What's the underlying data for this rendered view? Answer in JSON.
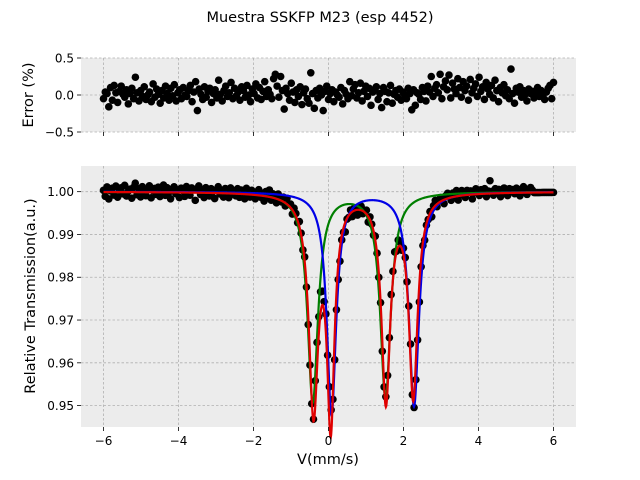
{
  "title": "Muestra SSKFP M23 (esp 4452)",
  "chart_data": [
    {
      "type": "scatter",
      "panel": "residuals",
      "xlabel": "",
      "ylabel": "Error (%)",
      "xlim": [
        -6.6,
        6.6
      ],
      "ylim": [
        -0.5,
        0.5
      ],
      "x_ticks": [
        -6,
        -4,
        -2,
        0,
        2,
        4,
        6
      ],
      "y_ticks": [
        -0.5,
        0.0,
        0.5
      ],
      "y_tick_labels": [
        "−0.5",
        "0.0",
        "0.5"
      ],
      "x_tick_labels_shown": false,
      "grid": true,
      "background": "#ececec",
      "marker_color": "#000000",
      "x_range": [
        -6.0,
        6.0
      ],
      "n_points": 256,
      "y": [
        -0.05,
        0.04,
        0.02,
        -0.16,
        0.1,
        -0.07,
        0.13,
        0.03,
        -0.1,
        0.05,
        0.12,
        0.01,
        -0.03,
        0.07,
        -0.12,
        0.02,
        0.09,
        -0.05,
        0.24,
        0.03,
        -0.08,
        0.06,
        -0.02,
        0.11,
        -0.06,
        0.0,
        0.04,
        -0.09,
        0.15,
        -0.03,
        0.08,
        0.01,
        -0.11,
        0.06,
        -0.04,
        0.12,
        0.02,
        -0.07,
        0.09,
        -0.01,
        0.14,
        -0.08,
        0.03,
        0.07,
        -0.05,
        0.1,
        0.0,
        -0.02,
        0.06,
        0.13,
        -0.09,
        0.04,
        0.18,
        -0.21,
        0.08,
        0.01,
        -0.06,
        0.11,
        -0.03,
        0.05,
        0.09,
        -0.1,
        0.02,
        0.07,
        -0.04,
        0.2,
        0.01,
        -0.08,
        0.06,
        0.12,
        -0.02,
        0.03,
        0.17,
        -0.05,
        0.09,
        -0.01,
        0.04,
        -0.07,
        0.11,
        0.06,
        -0.03,
        0.13,
        0.0,
        -0.09,
        0.08,
        0.02,
        0.15,
        -0.04,
        0.1,
        -0.06,
        0.05,
        0.18,
        -0.02,
        0.07,
        0.01,
        -0.05,
        0.22,
        0.28,
        0.12,
        -0.03,
        0.25,
        0.06,
        -0.19,
        0.09,
        0.02,
        -0.07,
        0.16,
        0.04,
        -0.1,
        0.07,
        -0.02,
        0.11,
        -0.13,
        0.03,
        0.08,
        -0.05,
        -0.11,
        0.3,
        0.02,
        -0.18,
        0.06,
        -0.04,
        0.09,
        0.0,
        -0.21,
        0.05,
        0.12,
        -0.06,
        0.02,
        0.07,
        -0.09,
        0.04,
        0.0,
        -0.03,
        0.1,
        -0.12,
        0.06,
        0.01,
        -0.05,
        0.18,
        -0.01,
        0.08,
        0.14,
        -0.04,
        0.03,
        0.16,
        -0.08,
        0.05,
        0.12,
        -0.02,
        0.09,
        -0.14,
        0.04,
        0.07,
        0.11,
        -0.06,
        0.02,
        -0.17,
        0.1,
        0.05,
        -0.09,
        0.03,
        0.13,
        -0.11,
        0.01,
        0.06,
        -0.03,
        0.08,
        -0.07,
        0.04,
        0.0,
        -0.05,
        0.09,
        0.02,
        -0.2,
        0.07,
        -0.14,
        0.03,
        0.01,
        -0.06,
        0.1,
        0.05,
        -0.08,
        0.12,
        0.04,
        0.25,
        -0.02,
        0.09,
        0.14,
        0.03,
        0.28,
        -0.05,
        0.11,
        0.19,
        0.07,
        0.27,
        -0.04,
        0.16,
        0.08,
        0.02,
        0.22,
        0.1,
        -0.03,
        0.18,
        0.06,
        0.12,
        -0.07,
        0.21,
        0.03,
        0.09,
        0.15,
        -0.02,
        0.24,
        0.05,
        0.11,
        -0.06,
        0.17,
        0.08,
        0.01,
        0.13,
        -0.04,
        0.2,
        0.06,
        -0.09,
        0.1,
        0.03,
        0.14,
        -0.01,
        0.07,
        -0.05,
        0.35,
        0.02,
        -0.11,
        0.09,
        0.04,
        0.11,
        -0.03,
        0.06,
        0.01,
        -0.08,
        0.08,
        0.02,
        0.05,
        -0.04,
        0.03,
        0.1,
        -0.02,
        0.06,
        0.0,
        -0.06,
        0.04,
        0.09,
        0.13,
        -0.05,
        0.17
      ]
    },
    {
      "type": "scatter",
      "panel": "spectrum",
      "xlabel": "V(mm/s)",
      "ylabel": "Relative Transmission(a.u.)",
      "xlim": [
        -6.6,
        6.6
      ],
      "ylim": [
        0.945,
        1.006
      ],
      "x_ticks": [
        -6,
        -4,
        -2,
        0,
        2,
        4,
        6
      ],
      "x_tick_labels": [
        "−6",
        "−4",
        "−2",
        "0",
        "2",
        "4",
        "6"
      ],
      "y_ticks": [
        0.95,
        0.96,
        0.97,
        0.98,
        0.99,
        1.0
      ],
      "y_tick_labels": [
        "0.95",
        "0.96",
        "0.97",
        "0.98",
        "0.99",
        "1.00"
      ],
      "grid": true,
      "background": "#ececec",
      "x_range": [
        -6.0,
        6.0
      ],
      "n_points": 256,
      "baseline": 1.0,
      "noise": [
        0.0004,
        -0.001,
        0.0012,
        -0.0016,
        0.0003,
        0.0009,
        -0.0007,
        0.0014,
        -0.0012,
        0.0005,
        0.001,
        -0.0004,
        0.0016,
        -0.0009,
        0.0002,
        0.0007,
        -0.0014,
        0.0011,
        0.0021,
        -0.0006,
        0.0008,
        -0.0011,
        0.0013,
        0.0001,
        -0.0008,
        0.0006,
        0.0015,
        -0.0013,
        0.0004,
        0.0009,
        -0.0005,
        0.0012,
        -0.001,
        0.0003,
        0.0017,
        -0.0007,
        0.0011,
        0.0,
        -0.0015,
        0.0008,
        0.0013,
        -0.0003,
        0.0006,
        -0.0012,
        0.001,
        0.0004,
        -0.0009,
        0.0014,
        0.0002,
        -0.0006,
        0.0011,
        0.0007,
        -0.0018,
        0.0009,
        0.0016,
        -0.0004,
        0.0005,
        -0.0011,
        0.0012,
        0.0001,
        -0.0007,
        0.001,
        0.0003,
        -0.0013,
        0.0008,
        0.0015,
        -0.0002,
        0.0006,
        -0.0009,
        0.0011,
        0.0004,
        -0.001,
        0.0013,
        0.0,
        0.0007,
        -0.0005,
        0.0012,
        -0.0008,
        0.0009,
        0.0002,
        -0.0011,
        0.0014,
        0.0005,
        -0.0006,
        0.001,
        0.0003,
        -0.0009,
        0.0008,
        0.0013,
        -0.0004,
        0.0006,
        -0.0012,
        0.0011,
        0.0001,
        0.0016,
        -0.0007,
        0.0009,
        0.0004,
        -0.001,
        0.0012,
        0.0006,
        -0.0003,
        0.001,
        -0.0008,
        0.0013,
        0.0002,
        0.0007,
        -0.0011,
        0.0009,
        0.0005,
        -0.0006,
        0.0011,
        0.0003,
        -0.0009,
        0.0014,
        0.0001,
        -0.0004,
        0.0008,
        0.0012,
        -0.001,
        0.0006,
        0.0002,
        -0.0007,
        0.0013,
        0.0004,
        -0.0005,
        0.001,
        -0.0012,
        0.0007,
        0.0011,
        0.0,
        -0.0008,
        0.0009,
        0.0005,
        -0.0003,
        0.0012,
        0.0006,
        -0.001,
        0.0008,
        0.0003,
        0.0014,
        -0.0006,
        0.001,
        0.0001,
        -0.0009,
        0.0007,
        0.0012,
        -0.0004,
        0.0005,
        0.0011,
        -0.0011,
        0.0009,
        0.0003,
        -0.0007,
        0.0013,
        0.0006,
        -0.0002,
        0.001,
        -0.0008,
        0.0004,
        0.0012,
        0.0,
        -0.001,
        0.0008,
        0.0005,
        0.0014,
        -0.0006,
        0.0009,
        0.0002,
        -0.0012,
        0.0007,
        0.0011,
        -0.0003,
        0.0006,
        0.001,
        -0.0009,
        0.0004,
        0.0013,
        0.0001,
        -0.0005,
        0.0009,
        0.0012,
        -0.0007,
        0.0006,
        0.0003,
        0.001,
        -0.0011,
        0.0008,
        0.0015,
        -0.0004,
        0.0007,
        0.0011,
        0.0002,
        -0.0008,
        0.0009,
        0.0013,
        0.0005,
        -0.0006,
        0.001,
        0.0003,
        0.0014,
        -0.0009,
        0.0007,
        0.0012,
        0.0001,
        -0.0005,
        0.0011,
        0.0006,
        0.0009,
        -0.001,
        0.0004,
        0.0013,
        0.0008,
        -0.0003,
        0.001,
        0.0002,
        0.0012,
        -0.0007,
        0.0006,
        0.003,
        0.0005,
        -0.0004,
        0.0011,
        0.0003,
        0.0009,
        -0.0008,
        0.0007,
        0.0012,
        0.0001,
        -0.0006,
        0.001,
        0.0004,
        0.0008,
        -0.0002,
        0.0011,
        0.0005,
        -0.0007,
        0.0009,
        0.0014,
        0.0002,
        -0.0004,
        0.0008,
        0.0012,
        0.0006
      ],
      "series": [
        {
          "color": "#000000",
          "style": "markers",
          "sites": [
            {
              "center": -0.42,
              "depth": 0.049,
              "hwhm": 0.14
            },
            {
              "center": 0.08,
              "depth": 0.048,
              "hwhm": 0.14
            },
            {
              "center": 1.52,
              "depth": 0.047,
              "hwhm": 0.14
            },
            {
              "center": 2.28,
              "depth": 0.049,
              "hwhm": 0.14
            }
          ]
        },
        {
          "color": "#e00000",
          "style": "line",
          "sites": [
            {
              "center": -0.4,
              "depth": 0.05,
              "hwhm": 0.15
            },
            {
              "center": 0.06,
              "depth": 0.052,
              "hwhm": 0.12
            },
            {
              "center": 1.53,
              "depth": 0.048,
              "hwhm": 0.14
            },
            {
              "center": 2.26,
              "depth": 0.047,
              "hwhm": 0.14
            }
          ]
        },
        {
          "color": "#0000e6",
          "style": "line",
          "sites": [
            {
              "center": 0.08,
              "depth": 0.052,
              "hwhm": 0.15
            },
            {
              "center": 2.28,
              "depth": 0.05,
              "hwhm": 0.16
            }
          ]
        },
        {
          "color": "#007f00",
          "style": "line",
          "sites": [
            {
              "center": -0.42,
              "depth": 0.049,
              "hwhm": 0.17
            },
            {
              "center": 1.52,
              "depth": 0.048,
              "hwhm": 0.17
            }
          ]
        }
      ]
    }
  ]
}
